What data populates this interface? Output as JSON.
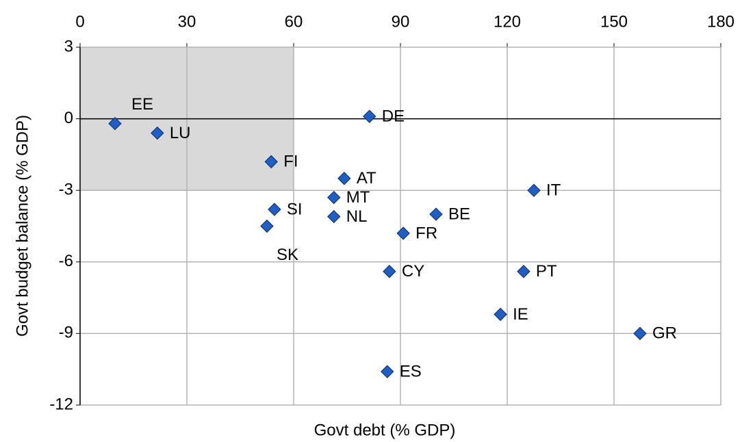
{
  "chart_data": {
    "type": "scatter",
    "x_label": "Govt debt (% GDP)",
    "y_label": "Govt budget balance (% GDP)",
    "xlim": [
      0,
      180
    ],
    "xticks": [
      0,
      30,
      60,
      90,
      120,
      150,
      180
    ],
    "ylim": [
      -12,
      3
    ],
    "yticks": [
      -12,
      -9,
      -6,
      -3,
      0,
      3
    ],
    "grid": true,
    "x_axis_position": "top",
    "color": "#1f5fc4",
    "shaded_region": {
      "x": [
        0,
        60
      ],
      "y": [
        -3,
        3
      ],
      "color": "#d9d9d9"
    },
    "points": [
      {
        "label": "EE",
        "x": 9.8,
        "y": -0.2
      },
      {
        "label": "LU",
        "x": 21.7,
        "y": -0.6
      },
      {
        "label": "DE",
        "x": 81.3,
        "y": 0.1
      },
      {
        "label": "FI",
        "x": 53.7,
        "y": -1.8
      },
      {
        "label": "AT",
        "x": 74.2,
        "y": -2.5
      },
      {
        "label": "MT",
        "x": 71.3,
        "y": -3.3
      },
      {
        "label": "NL",
        "x": 71.3,
        "y": -4.1
      },
      {
        "label": "SI",
        "x": 54.6,
        "y": -3.8
      },
      {
        "label": "SK",
        "x": 52.5,
        "y": -4.5
      },
      {
        "label": "FR",
        "x": 90.8,
        "y": -4.8
      },
      {
        "label": "BE",
        "x": 100,
        "y": -4.0
      },
      {
        "label": "IT",
        "x": 127.5,
        "y": -3.0
      },
      {
        "label": "CY",
        "x": 86.9,
        "y": -6.4
      },
      {
        "label": "PT",
        "x": 124.6,
        "y": -6.4
      },
      {
        "label": "IE",
        "x": 118.1,
        "y": -8.2
      },
      {
        "label": "GR",
        "x": 157.3,
        "y": -9.0
      },
      {
        "label": "ES",
        "x": 86.3,
        "y": -10.6
      }
    ]
  }
}
